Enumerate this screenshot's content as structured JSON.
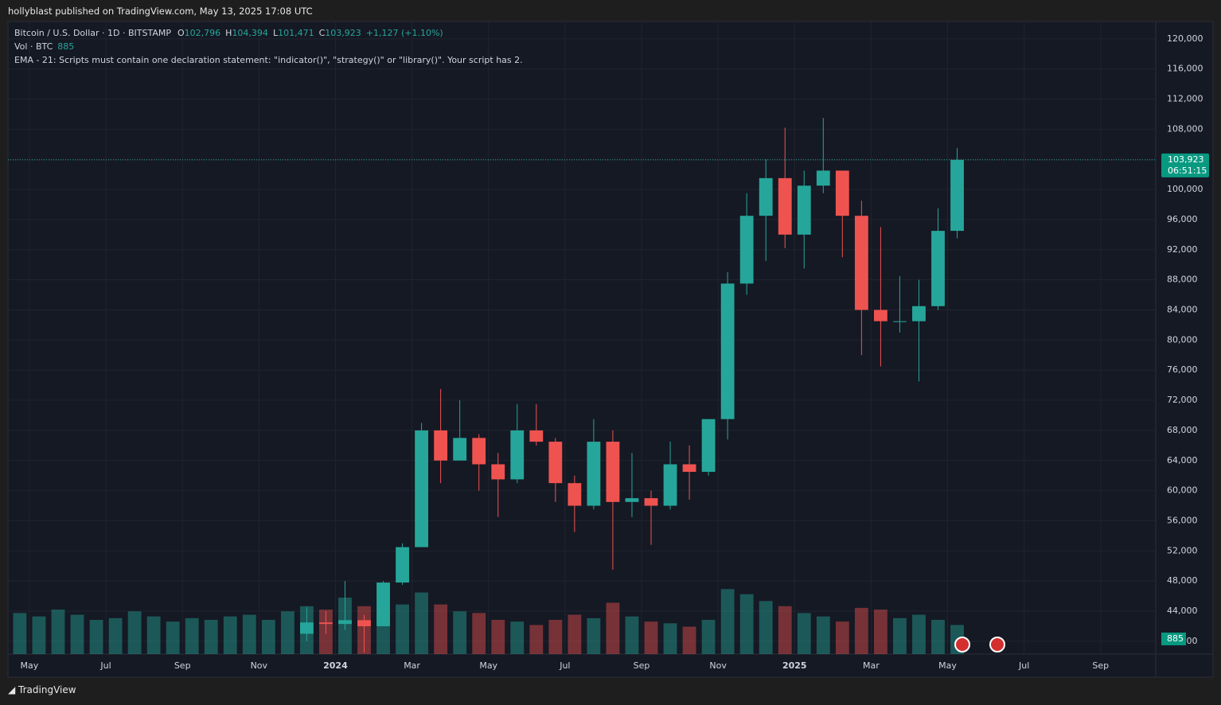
{
  "header": {
    "publisher": "hollyblast published on TradingView.com, May 13, 2025 17:08 UTC"
  },
  "legend": {
    "symbol": "Bitcoin / U.S. Dollar · 1D · BITSTAMP",
    "ohlc": [
      {
        "key": "O",
        "value": "102,796"
      },
      {
        "key": "H",
        "value": "104,394"
      },
      {
        "key": "L",
        "value": "101,471"
      },
      {
        "key": "C",
        "value": "103,923"
      }
    ],
    "change": "+1,127 (+1.10%)",
    "vol_label": "Vol · BTC",
    "vol_value": 885,
    "ema_note": "EMA - 21: Scripts must contain one declaration statement: \"indicator()\", \"strategy()\" or \"library()\". Your script has 2."
  },
  "footer": {
    "brand": "TradingView"
  },
  "chart_data": {
    "type": "candlestick",
    "up_color": "#26a69a",
    "down_color": "#ef5350",
    "grid": true,
    "xlim": [
      -0.56,
      29.44
    ],
    "xticks": [
      {
        "value": 0,
        "label": "May"
      },
      {
        "value": 2,
        "label": "Jul"
      },
      {
        "value": 4,
        "label": "Sep"
      },
      {
        "value": 6,
        "label": "Nov"
      },
      {
        "value": 8,
        "label": "2024"
      },
      {
        "value": 10,
        "label": "Mar"
      },
      {
        "value": 12,
        "label": "May"
      },
      {
        "value": 14,
        "label": "Jul"
      },
      {
        "value": 16,
        "label": "Sep"
      },
      {
        "value": 18,
        "label": "Nov"
      },
      {
        "value": 20,
        "label": "2025"
      },
      {
        "value": 22,
        "label": "Mar"
      },
      {
        "value": 24,
        "label": "May"
      },
      {
        "value": 26,
        "label": "Jul"
      },
      {
        "value": 28,
        "label": "Sep"
      }
    ],
    "ylim": [
      38300,
      122300
    ],
    "yticks": [
      {
        "value": 40000,
        "label": "40,000"
      },
      {
        "value": 44000,
        "label": "44,000"
      },
      {
        "value": 48000,
        "label": "48,000"
      },
      {
        "value": 52000,
        "label": "52,000"
      },
      {
        "value": 56000,
        "label": "56,000"
      },
      {
        "value": 60000,
        "label": "60,000"
      },
      {
        "value": 64000,
        "label": "64,000"
      },
      {
        "value": 68000,
        "label": "68,000"
      },
      {
        "value": 72000,
        "label": "72,000"
      },
      {
        "value": 76000,
        "label": "76,000"
      },
      {
        "value": 80000,
        "label": "80,000"
      },
      {
        "value": 84000,
        "label": "84,000"
      },
      {
        "value": 88000,
        "label": "88,000"
      },
      {
        "value": 92000,
        "label": "92,000"
      },
      {
        "value": 96000,
        "label": "96,000"
      },
      {
        "value": 100000,
        "label": "100,000"
      },
      {
        "value": 104000,
        "label": "104,000"
      },
      {
        "value": 108000,
        "label": "108,000"
      },
      {
        "value": 112000,
        "label": "112,000"
      },
      {
        "value": 116000,
        "label": "116,000"
      },
      {
        "value": 120000,
        "label": "120,000"
      }
    ],
    "x": [
      7.25,
      7.75,
      8.25,
      8.75,
      9.25,
      9.75,
      10.25,
      10.75,
      11.25,
      11.75,
      12.25,
      12.75,
      13.25,
      13.75,
      14.25,
      14.75,
      15.25,
      15.75,
      16.25,
      16.75,
      17.25,
      17.75,
      18.25,
      18.75,
      19.25,
      19.75,
      20.25,
      20.75,
      21.25,
      21.75,
      22.25,
      22.75,
      23.25,
      23.75,
      24.25
    ],
    "open": [
      41000,
      42500,
      42300,
      42800,
      42000,
      47800,
      52500,
      68000,
      64000,
      67000,
      63500,
      61500,
      68000,
      66500,
      61000,
      58000,
      66500,
      58500,
      59000,
      58000,
      63500,
      62500,
      69500,
      87500,
      96500,
      101500,
      94000,
      100500,
      102500,
      96500,
      84000,
      82500,
      82500,
      84500,
      94500
    ],
    "high": [
      44500,
      44000,
      48000,
      43500,
      48000,
      53000,
      69000,
      73500,
      72000,
      67500,
      65000,
      71500,
      71500,
      67000,
      62000,
      69500,
      68000,
      65000,
      60000,
      66500,
      66000,
      69500,
      89000,
      99500,
      104000,
      108200,
      102500,
      109500,
      102500,
      98500,
      95000,
      88500,
      88000,
      97500,
      105500
    ],
    "low": [
      40000,
      41000,
      41500,
      38500,
      42000,
      47500,
      52500,
      61000,
      64000,
      60000,
      56500,
      61000,
      66000,
      58500,
      54500,
      57500,
      49500,
      56500,
      52800,
      57500,
      58800,
      62000,
      66800,
      86000,
      90500,
      92200,
      89500,
      99500,
      91000,
      78000,
      76500,
      81000,
      74500,
      84000,
      93500
    ],
    "close": [
      42500,
      42300,
      42800,
      42000,
      47800,
      52500,
      68000,
      64000,
      67000,
      63500,
      61500,
      68000,
      66500,
      61000,
      58000,
      66500,
      58500,
      59000,
      58000,
      63500,
      62500,
      69500,
      87500,
      96500,
      101500,
      94000,
      100500,
      102500,
      96500,
      84000,
      82500,
      82500,
      84500,
      94500,
      103923
    ],
    "last_price": {
      "value": 103923,
      "label": "103,923"
    },
    "countdown": "06:51:15",
    "volume": {
      "color": "#26a69a",
      "vlim": [
        0,
        6000
      ],
      "x": [
        -0.25,
        0.25,
        0.75,
        1.25,
        1.75,
        2.25,
        2.75,
        3.25,
        3.75,
        4.25,
        4.75,
        5.25,
        5.75,
        6.25,
        6.75,
        7.25,
        7.75,
        8.25,
        8.75,
        9.25,
        9.75,
        10.25,
        10.75,
        11.25,
        11.75,
        12.25,
        12.75,
        13.25,
        13.75,
        14.25,
        14.75,
        15.25,
        15.75,
        16.25,
        16.75,
        17.25,
        17.75,
        18.25,
        18.75,
        19.25,
        19.75,
        20.25,
        20.75,
        21.25,
        21.75,
        22.25,
        22.75,
        23.25,
        23.75,
        24.25
      ],
      "values": [
        2400,
        2200,
        2600,
        2300,
        2000,
        2100,
        2500,
        2200,
        1900,
        2100,
        2000,
        2200,
        2300,
        2000,
        2500,
        2800,
        2600,
        3300,
        2800,
        2300,
        2900,
        3600,
        2900,
        2500,
        2400,
        2000,
        1900,
        1700,
        2000,
        2300,
        2100,
        3000,
        2200,
        1900,
        1800,
        1600,
        2000,
        3800,
        3500,
        3100,
        2800,
        2400,
        2200,
        1900,
        2700,
        2600,
        2100,
        2300,
        2000,
        1700
      ]
    }
  }
}
